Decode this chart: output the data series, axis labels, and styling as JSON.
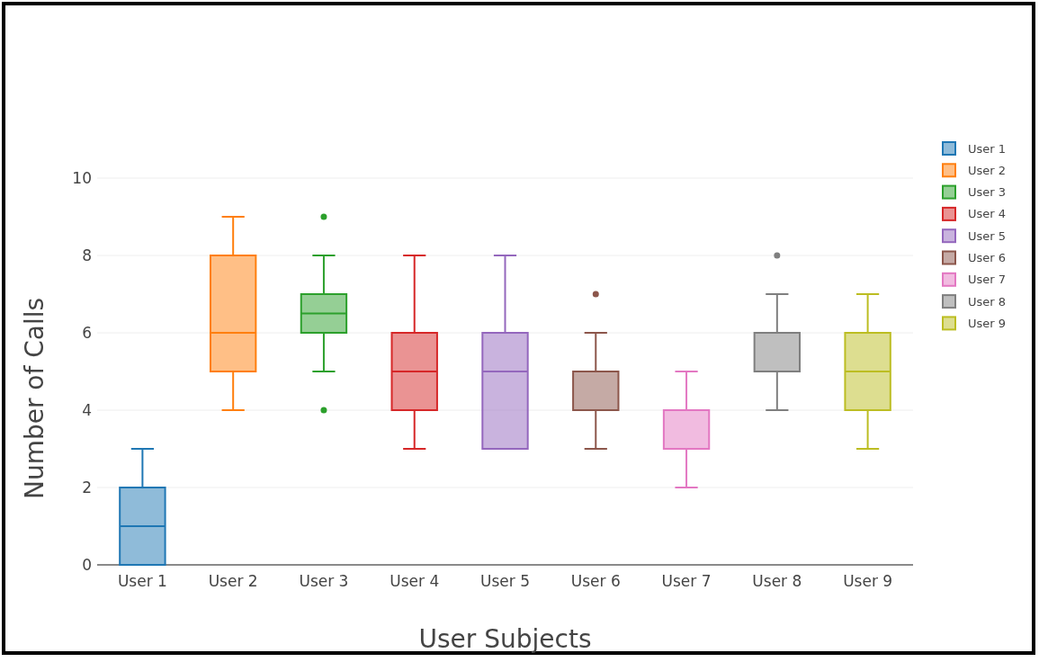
{
  "chart_data": {
    "type": "box",
    "xlabel": "User Subjects",
    "ylabel": "Number of Calls",
    "categories": [
      "User 1",
      "User 2",
      "User 3",
      "User 4",
      "User 5",
      "User 6",
      "User 7",
      "User 8",
      "User 9"
    ],
    "ylim": [
      0,
      10
    ],
    "yticks": [
      0,
      2,
      4,
      6,
      8,
      10
    ],
    "grid": "y",
    "legend": "top right",
    "series": [
      {
        "name": "User 1",
        "color": "#1f77b4",
        "x": [
          "User 1"
        ],
        "boxes": [
          {
            "low": 0,
            "q1": 0,
            "median": 1,
            "q3": 2,
            "high": 3
          }
        ]
      },
      {
        "name": "User 2",
        "color": "#ff7f0e",
        "x": [
          "User 2"
        ],
        "boxes": [
          {
            "low": 4,
            "q1": 5,
            "median": 6,
            "q3": 8,
            "high": 9
          }
        ]
      },
      {
        "name": "User 3",
        "color": "#2ca02c",
        "x": [
          "User 3"
        ],
        "boxes": [
          {
            "low": 5,
            "q1": 6,
            "median": 6.5,
            "q3": 7,
            "high": 8,
            "outliers": [
              9,
              4
            ]
          }
        ]
      },
      {
        "name": "User 4",
        "color": "#d62728",
        "x": [
          "User 4"
        ],
        "boxes": [
          {
            "low": 3,
            "q1": 4,
            "median": 5,
            "q3": 6,
            "high": 8
          }
        ]
      },
      {
        "name": "User 5",
        "color": "#9467bd",
        "x": [
          "User 5"
        ],
        "boxes": [
          {
            "low": 3,
            "q1": 3,
            "median": 5,
            "q3": 6,
            "high": 8
          }
        ]
      },
      {
        "name": "User 6",
        "color": "#8c564b",
        "x": [
          "User 6"
        ],
        "boxes": [
          {
            "low": 3,
            "q1": 4,
            "median": 5,
            "q3": 5,
            "high": 6,
            "outliers": [
              7
            ]
          }
        ]
      },
      {
        "name": "User 7",
        "color": "#e377c2",
        "x": [
          "User 7"
        ],
        "boxes": [
          {
            "low": 2,
            "q1": 3,
            "median": 3,
            "q3": 4,
            "high": 5
          }
        ]
      },
      {
        "name": "User 8",
        "color": "#7f7f7f",
        "x": [
          "User 8"
        ],
        "boxes": [
          {
            "low": 4,
            "q1": 5,
            "median": 5,
            "q3": 6,
            "high": 7,
            "outliers": [
              8
            ]
          }
        ]
      },
      {
        "name": "User 9",
        "color": "#bcbd22",
        "x": [
          "User 9"
        ],
        "boxes": [
          {
            "low": 3,
            "q1": 4,
            "median": 5,
            "q3": 6,
            "high": 7
          }
        ]
      }
    ]
  }
}
